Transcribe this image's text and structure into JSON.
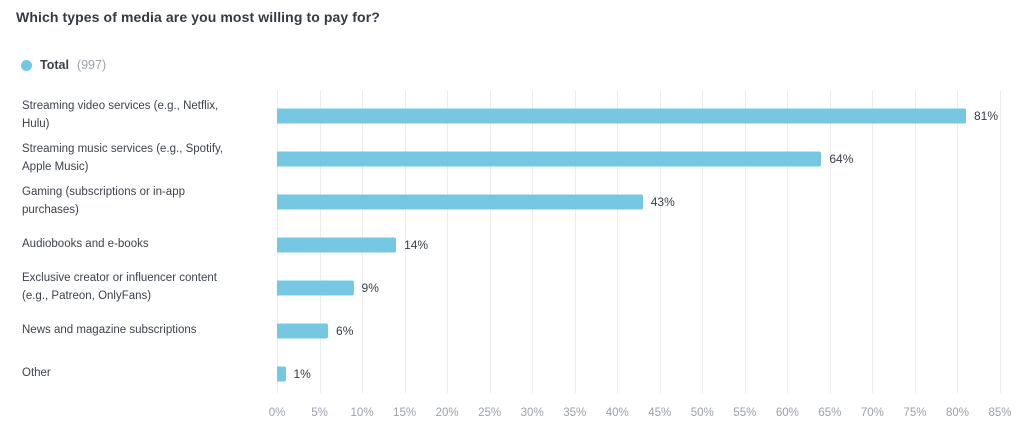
{
  "title": "Which types of media are you most willing to pay for?",
  "legend": {
    "label": "Total",
    "count": "(997)",
    "color": "#72C7E1"
  },
  "chart_data": {
    "type": "bar",
    "orientation": "horizontal",
    "title": "Which types of media are you most willing to pay for?",
    "legend_entries": [
      "Total (997)"
    ],
    "categories": [
      "Streaming video services (e.g., Netflix, Hulu)",
      "Streaming music services (e.g., Spotify, Apple Music)",
      "Gaming (subscriptions or in-app purchases)",
      "Audiobooks and e-books",
      "Exclusive creator or influencer content (e.g., Patreon, OnlyFans)",
      "News and magazine subscriptions",
      "Other"
    ],
    "values": [
      81,
      64,
      43,
      14,
      9,
      6,
      1
    ],
    "value_labels": [
      "81%",
      "64%",
      "43%",
      "14%",
      "9%",
      "6%",
      "1%"
    ],
    "xlim": [
      0,
      85
    ],
    "x_tick_step": 5,
    "x_ticks": [
      "0%",
      "5%",
      "10%",
      "15%",
      "20%",
      "25%",
      "30%",
      "35%",
      "40%",
      "45%",
      "50%",
      "55%",
      "60%",
      "65%",
      "70%",
      "75%",
      "80%",
      "85%"
    ],
    "grid": true,
    "bar_color": "#76C8E2",
    "grid_color": "#ececec"
  }
}
